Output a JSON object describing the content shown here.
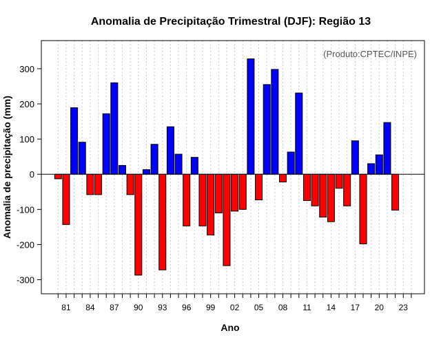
{
  "chart_data": {
    "type": "bar",
    "title": "Anomalia de Precipitação Trimestral (DJF): Região 13",
    "xlabel": "Ano",
    "ylabel": "Anomalia de precipitação (mm)",
    "credit": "(Produto:CPTEC/INPE)",
    "ylim": [
      -340,
      380
    ],
    "yticks": [
      -300,
      -200,
      -100,
      0,
      100,
      200,
      300
    ],
    "grid": "vertical-dotted",
    "categories": [
      "80",
      "81",
      "82",
      "83",
      "84",
      "85",
      "86",
      "87",
      "88",
      "89",
      "90",
      "91",
      "92",
      "93",
      "94",
      "95",
      "96",
      "97",
      "98",
      "99",
      "00",
      "01",
      "02",
      "03",
      "04",
      "05",
      "06",
      "07",
      "08",
      "09",
      "10",
      "11",
      "12",
      "13",
      "14",
      "15",
      "16",
      "17",
      "18",
      "19",
      "20",
      "21",
      "22",
      "23",
      "24"
    ],
    "tick_labels": [
      "81",
      "84",
      "87",
      "90",
      "93",
      "96",
      "99",
      "02",
      "05",
      "08",
      "11",
      "14",
      "17",
      "20",
      "23"
    ],
    "values": [
      -13,
      -143,
      189,
      91,
      -58,
      -58,
      172,
      260,
      25,
      -58,
      -287,
      13,
      85,
      -272,
      135,
      57,
      -147,
      48,
      -147,
      -173,
      -110,
      -260,
      -105,
      -100,
      328,
      -73,
      255,
      298,
      -22,
      63,
      231,
      -75,
      -90,
      -122,
      -135,
      -40,
      -90,
      95,
      -198,
      30,
      55,
      147,
      -102,
      null,
      null
    ],
    "colors": {
      "positive": "#0000ff",
      "negative": "#ff0000",
      "zero_line": "#000000",
      "grid": "#c8c8c8"
    }
  }
}
